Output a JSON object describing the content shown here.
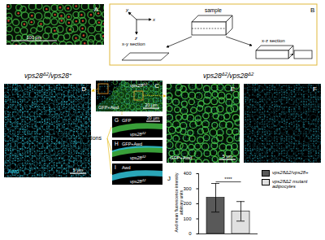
{
  "panels": {
    "A": {
      "label": "A",
      "scale_bar": "100 μm"
    },
    "B": {
      "label": "B",
      "axes": [
        "y",
        "x",
        "z"
      ],
      "sample": "sample",
      "sections": [
        "x-y section",
        "x-z section"
      ]
    },
    "C": {
      "label": "C",
      "channels": "GFP+Awd",
      "genotype": [
        {
          "text": "vps28"
        },
        {
          "text": "Δ2",
          "sup": true
        }
      ],
      "scale_bar": "20 μm"
    },
    "D": {
      "label": "D",
      "channels": "Awd",
      "scale_bar": "5 μm"
    },
    "E": {
      "label": "E",
      "channels": "GFP+Awd",
      "scale_bar": "5 μm"
    },
    "F": {
      "label": "F"
    },
    "G": {
      "label": "G",
      "channels": "GFP",
      "genotype": [
        {
          "text": "vps28"
        },
        {
          "text": "Δ2",
          "sup": true
        }
      ],
      "scale_bar": "20 μm"
    },
    "H": {
      "label": "H",
      "channels": "GFP+Awd",
      "genotype": [
        {
          "text": "vps28"
        },
        {
          "text": "Δ2",
          "sup": true
        }
      ]
    },
    "I": {
      "label": "I",
      "channels": "Awd",
      "genotype": [
        {
          "text": "vps28"
        },
        {
          "text": "Δ2",
          "sup": true
        }
      ]
    },
    "J": {
      "label": "J"
    }
  },
  "headings": {
    "left": [
      {
        "text": "vps28"
      },
      {
        "text": "Δ2",
        "sup": true
      },
      {
        "text": "/vps28"
      },
      {
        "text": "+",
        "sup": true
      }
    ],
    "right": [
      {
        "text": "vps28"
      },
      {
        "text": "Δ2",
        "sup": true
      },
      {
        "text": "/vps28"
      },
      {
        "text": "Δ2",
        "sup": true
      }
    ],
    "sections": "x-z sections"
  },
  "chart_data": {
    "type": "bar",
    "categories": [
      null
    ],
    "series": [
      {
        "name": "vps28Δ2/vps28+",
        "color": "#595959",
        "values": [
          240
        ],
        "errors": [
          95
        ]
      },
      {
        "name": "vps28Δ2 mutant adipocytes",
        "color": "#e0e0e0",
        "values": [
          150
        ],
        "errors": [
          65
        ]
      }
    ],
    "ylabel": [
      "Awd mean fluorescence intensity",
      "arbitrary units"
    ],
    "ylim": [
      0,
      400
    ],
    "yticks": [
      0,
      100,
      200,
      300,
      400
    ],
    "tick_labels": "y",
    "legend": "top-right",
    "annotations": [
      {
        "text": "****"
      }
    ]
  }
}
